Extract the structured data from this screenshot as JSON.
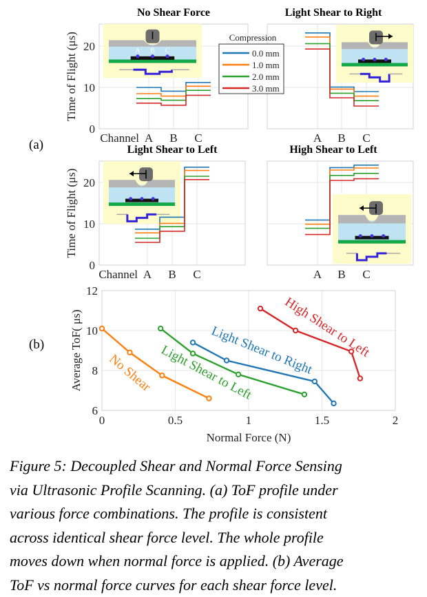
{
  "figure_a": {
    "label": "(a)",
    "ylabel": "Time of Flight (μs)",
    "channel_label": "Channel",
    "yticks": [
      "0",
      "10",
      "20"
    ],
    "xticks": [
      "A",
      "B",
      "C"
    ],
    "legend": {
      "title": "Compression",
      "entries": [
        "0.0 mm",
        "1.0 mm",
        "2.0 mm",
        "3.0 mm"
      ],
      "colors": [
        "#1f77b4",
        "#ff7f0e",
        "#2ca02c",
        "#d62728"
      ]
    },
    "panels": [
      {
        "title": "No Shear Force",
        "values": [
          [
            10.0,
            9.1,
            11.2
          ],
          [
            8.5,
            7.9,
            10.3
          ],
          [
            7.3,
            6.9,
            9.3
          ],
          [
            6.2,
            5.7,
            8.1
          ]
        ]
      },
      {
        "title": "Light Shear to Right",
        "values": [
          [
            23.2,
            10.1,
            9.0
          ],
          [
            22.2,
            9.6,
            7.9
          ],
          [
            20.6,
            8.6,
            6.8
          ],
          [
            19.3,
            7.5,
            5.5
          ]
        ]
      },
      {
        "title": "Light Shear to Left",
        "values": [
          [
            8.7,
            11.6,
            23.7
          ],
          [
            7.8,
            10.1,
            22.9
          ],
          [
            6.5,
            9.3,
            21.5
          ],
          [
            5.5,
            8.2,
            20.7
          ]
        ]
      },
      {
        "title": "High Shear to Left",
        "values": [
          [
            10.9,
            23.6,
            24.2
          ],
          [
            9.9,
            23.0,
            23.5
          ],
          [
            8.9,
            21.7,
            22.2
          ],
          [
            7.4,
            20.5,
            20.9
          ]
        ]
      }
    ],
    "inset_labels": [
      "A",
      "B",
      "C"
    ]
  },
  "chart_data": {
    "type": "line",
    "label": "(b)",
    "xlabel": "Normal Force (N)",
    "ylabel": "Average ToF( μs)",
    "xlim": [
      0,
      2
    ],
    "ylim": [
      6,
      12
    ],
    "xticks": [
      "0",
      "0.5",
      "1",
      "1.5",
      "2"
    ],
    "yticks": [
      "6",
      "8",
      "10",
      "12"
    ],
    "grid": true,
    "series": [
      {
        "name": "No Shear",
        "color": "#ff7f0e",
        "x": [
          0,
          0.19,
          0.41,
          0.73
        ],
        "y": [
          10.1,
          8.9,
          7.75,
          6.6
        ]
      },
      {
        "name": "Light Shear to Left",
        "color": "#2ca02c",
        "x": [
          0.4,
          0.62,
          0.93,
          1.38
        ],
        "y": [
          10.1,
          8.85,
          7.8,
          6.8
        ]
      },
      {
        "name": "Light Shear to Right",
        "color": "#1f77b4",
        "x": [
          0.62,
          0.85,
          1.45,
          1.58
        ],
        "y": [
          9.4,
          8.5,
          7.45,
          6.35
        ]
      },
      {
        "name": "High Shear to Left",
        "color": "#d62728",
        "x": [
          1.08,
          1.32,
          1.7,
          1.76
        ],
        "y": [
          11.1,
          10.0,
          8.95,
          7.6
        ]
      }
    ]
  },
  "caption": {
    "lines": [
      "Figure 5: Decoupled Shear and Normal Force Sensing",
      "via Ultrasonic Profile Scanning. (a) ToF profile under",
      "various force combinations. The profile is consistent",
      "across identical shear force level. The whole profile",
      "moves down when normal force is applied. (b) Average",
      "ToF vs normal force curves for each shear force level."
    ]
  }
}
